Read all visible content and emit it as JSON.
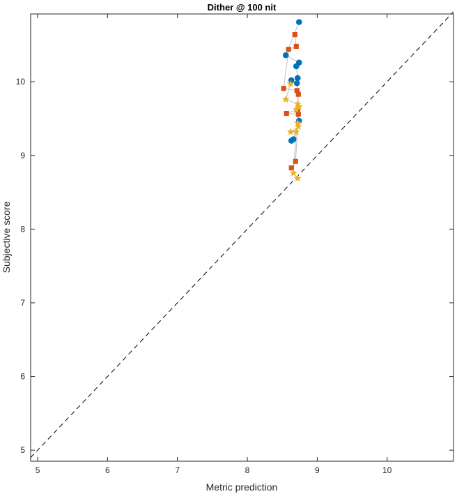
{
  "chart_data": {
    "type": "scatter",
    "title": "Dither @ 100 nit",
    "xlabel": "Metric prediction",
    "ylabel": "Subjective score",
    "xlim": [
      4.9,
      10.95
    ],
    "ylim": [
      4.85,
      10.92
    ],
    "xticks": [
      "5",
      "6",
      "7",
      "8",
      "9",
      "10"
    ],
    "yticks": [
      "5",
      "6",
      "7",
      "8",
      "9",
      "10"
    ],
    "grid": false,
    "reference_line": {
      "style": "dashed",
      "from": [
        4.9,
        4.9
      ],
      "to": [
        10.95,
        10.95
      ]
    },
    "series": [
      {
        "marker": "circle",
        "color": "#0072bd",
        "points": [
          [
            8.74,
            10.81
          ],
          [
            8.55,
            10.36
          ],
          [
            8.74,
            10.26
          ],
          [
            8.7,
            10.21
          ],
          [
            8.72,
            10.05
          ],
          [
            8.63,
            10.02
          ],
          [
            8.71,
            9.98
          ],
          [
            8.74,
            9.47
          ],
          [
            8.66,
            9.22
          ],
          [
            8.63,
            9.2
          ]
        ]
      },
      {
        "marker": "square",
        "color": "#d95319",
        "points": [
          [
            8.68,
            10.64
          ],
          [
            8.7,
            10.48
          ],
          [
            8.59,
            10.44
          ],
          [
            8.52,
            9.91
          ],
          [
            8.71,
            9.88
          ],
          [
            8.73,
            9.83
          ],
          [
            8.72,
            9.62
          ],
          [
            8.56,
            9.57
          ],
          [
            8.73,
            9.56
          ],
          [
            8.69,
            8.92
          ],
          [
            8.63,
            8.83
          ]
        ]
      },
      {
        "marker": "star",
        "color": "#edb120",
        "points": [
          [
            8.62,
            9.97
          ],
          [
            8.55,
            9.76
          ],
          [
            8.72,
            9.7
          ],
          [
            8.74,
            9.66
          ],
          [
            8.7,
            9.62
          ],
          [
            8.72,
            9.44
          ],
          [
            8.73,
            9.39
          ],
          [
            8.62,
            9.32
          ],
          [
            8.7,
            9.32
          ],
          [
            8.66,
            8.76
          ],
          [
            8.72,
            8.69
          ]
        ]
      }
    ],
    "connector_color": "#bdbdbd"
  }
}
